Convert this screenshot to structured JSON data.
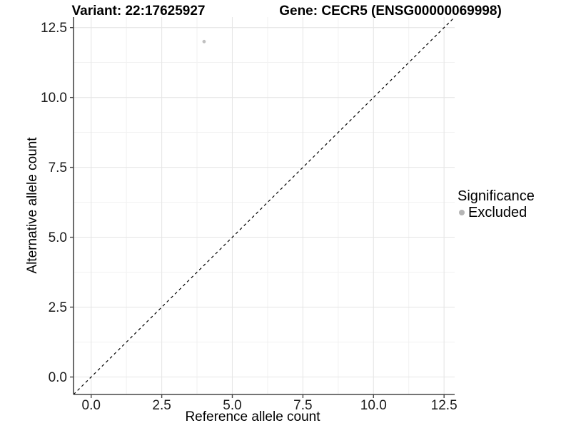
{
  "titles": {
    "left": "Variant: 22:17625927",
    "right": "Gene: CECR5 (ENSG00000069998)"
  },
  "chart_data": {
    "type": "scatter",
    "title": "Variant: 22:17625927  /  Gene: CECR5 (ENSG00000069998)",
    "xlabel": "Reference allele count",
    "ylabel": "Alternative allele count",
    "xlim": [
      -0.625,
      12.875
    ],
    "ylim": [
      -0.625,
      12.875
    ],
    "xticks": [
      0.0,
      2.5,
      5.0,
      7.5,
      10.0,
      12.5
    ],
    "yticks": [
      0.0,
      2.5,
      5.0,
      7.5,
      10.0,
      12.5
    ],
    "xtick_labels": [
      "0.0",
      "2.5",
      "5.0",
      "7.5",
      "10.0",
      "12.5"
    ],
    "ytick_labels": [
      "0.0",
      "2.5",
      "5.0",
      "7.5",
      "10.0",
      "12.5"
    ],
    "minor_ticks": [
      1.25,
      3.75,
      6.25,
      8.75,
      11.25
    ],
    "grid": {
      "major": true,
      "minor": true
    },
    "points": [
      {
        "x": 4,
        "y": 12,
        "series": "Excluded",
        "color": "#c0c0c0"
      }
    ],
    "reference_line": {
      "slope": 1,
      "intercept": 0,
      "style": "dashed",
      "color": "#000000"
    },
    "legend": {
      "title": "Significance",
      "position": "right",
      "entries": [
        {
          "label": "Excluded",
          "color": "#b5b5b5"
        }
      ]
    }
  },
  "colors": {
    "background": "#ffffff",
    "axis_line": "#474747",
    "tick_mark": "#474747",
    "tick_label": "#1a1a1a",
    "grid_major": "#e6e6e6",
    "grid_minor": "#f1f1f1",
    "point": "#c0c0c0",
    "reference_line": "#000000"
  }
}
